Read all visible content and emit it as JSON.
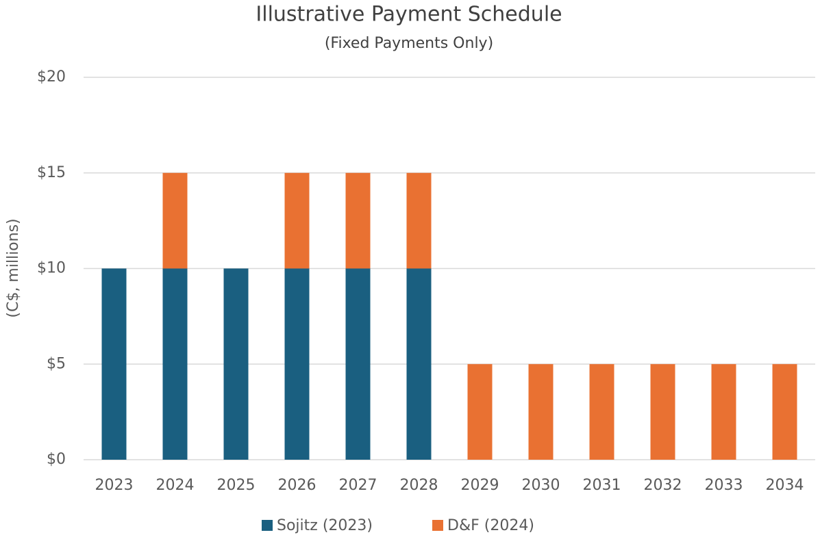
{
  "chart_data": {
    "type": "stacked_bar",
    "title": "Illustrative Payment Schedule",
    "subtitle": "(Fixed Payments Only)",
    "y_label": "(C$, millions)",
    "categories": [
      "2023",
      "2024",
      "2025",
      "2026",
      "2027",
      "2028",
      "2029",
      "2030",
      "2031",
      "2032",
      "2033",
      "2034"
    ],
    "series": [
      {
        "name": "Sojitz (2023)",
        "color": "#1a5f80",
        "values": [
          10,
          10,
          10,
          10,
          10,
          10,
          0,
          0,
          0,
          0,
          0,
          0
        ]
      },
      {
        "name": "D&F (2024)",
        "color": "#e97132",
        "values": [
          0,
          5,
          0,
          5,
          5,
          5,
          5,
          5,
          5,
          5,
          5,
          5
        ]
      }
    ],
    "ylim": [
      0,
      20
    ],
    "yticks": [
      {
        "value": 0,
        "label": "$0"
      },
      {
        "value": 5,
        "label": "$5"
      },
      {
        "value": 10,
        "label": "$10"
      },
      {
        "value": 15,
        "label": "$15"
      },
      {
        "value": 20,
        "label": "$20"
      }
    ],
    "grid": true,
    "legend": "bottom"
  }
}
